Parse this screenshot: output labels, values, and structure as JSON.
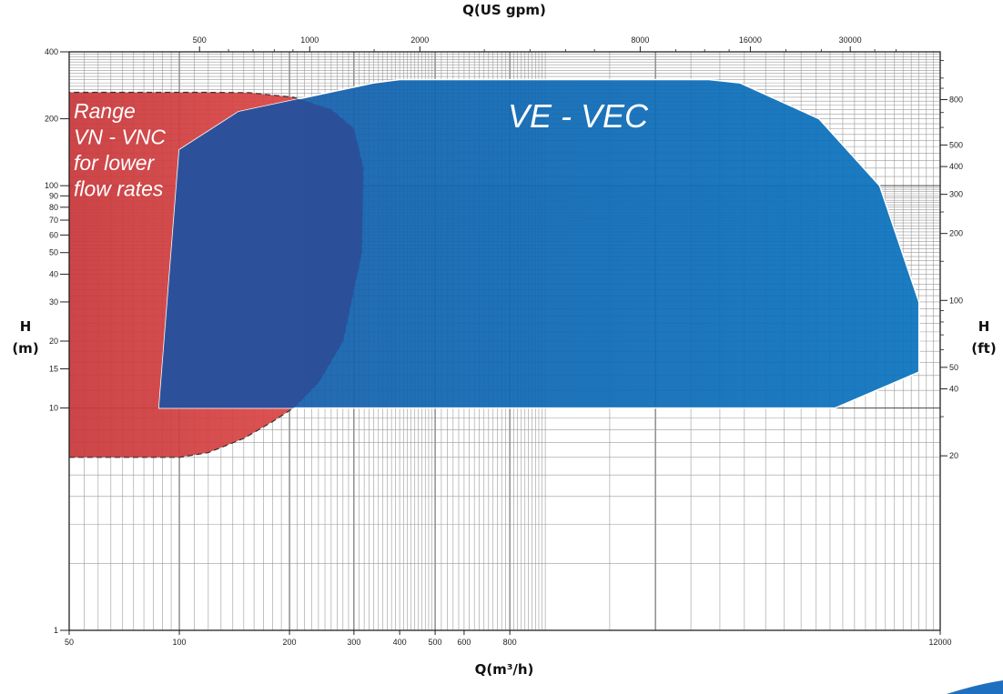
{
  "chart_data": {
    "type": "area",
    "title": "",
    "xlabel": "Q(m³/h)",
    "x2label": "Q(US gpm)",
    "ylabel_line1": "H",
    "ylabel_line2": "(m)",
    "y2label_line1": "H",
    "y2label_line2": "(ft)",
    "x_scale": "log",
    "y_scale": "log",
    "xlim": [
      50,
      12000
    ],
    "ylim": [
      1,
      400
    ],
    "grid": true,
    "x_ticks": [
      "50",
      "100",
      "200",
      "300",
      "400",
      "500",
      "600",
      "800",
      "12000"
    ],
    "y_ticks": [
      "1",
      "10",
      "15",
      "20",
      "30",
      "40",
      "50",
      "60",
      "70",
      "80",
      "90",
      "100",
      "200",
      "400"
    ],
    "x2_ticks": [
      "500",
      "1000",
      "2000",
      "8000",
      "16000",
      "30000"
    ],
    "y2_ticks": [
      "20",
      "40",
      "50",
      "100",
      "200",
      "300",
      "400",
      "500",
      "800"
    ],
    "regions": [
      {
        "name_lines": [
          "Range",
          "VN - VNC",
          "for lower",
          "flow rates"
        ],
        "color": "#d33b3b",
        "x": [
          50,
          52,
          100,
          120,
          150,
          180,
          205,
          240,
          280,
          315,
          318,
          300,
          260,
          205,
          155,
          118,
          98,
          52,
          50
        ],
        "y": [
          6,
          6,
          6,
          6.3,
          7.3,
          8.7,
          10,
          13,
          20,
          50,
          120,
          180,
          220,
          250,
          262,
          263,
          263,
          263,
          263
        ]
      },
      {
        "name_lines": [
          "VE - VEC"
        ],
        "color": "#0a6fb8",
        "x": [
          88,
          100,
          145,
          340,
          400,
          2800,
          3400,
          5600,
          8200,
          10500,
          10500,
          6200,
          88
        ],
        "y": [
          10,
          145,
          215,
          290,
          300,
          300,
          290,
          200,
          100,
          30,
          14.5,
          10,
          10
        ]
      }
    ]
  }
}
